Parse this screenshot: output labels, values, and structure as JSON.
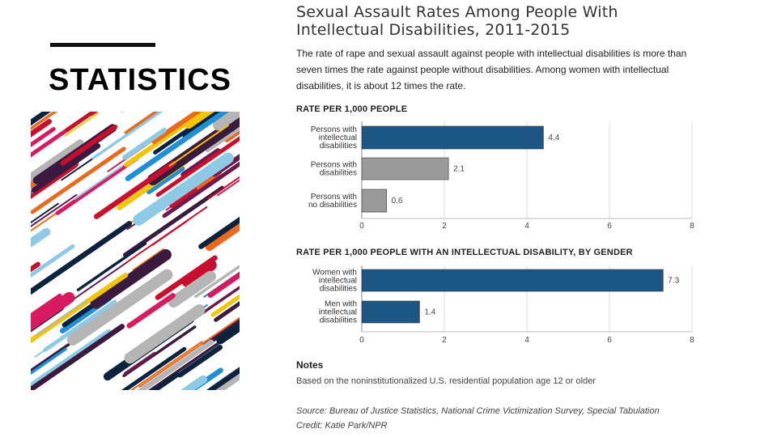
{
  "slide": {
    "heading": "STATISTICS"
  },
  "chart": {
    "title_line1": "Sexual Assault Rates Among People With",
    "title_line2": "Intellectual Disabilities, 2011-2015",
    "subtitle_line1": "The rate of rape and sexual assault against people with intellectual disabilities is more than",
    "subtitle_line2": "seven times the rate against people without disabilities. Among women with intellectual",
    "subtitle_line3": "disabilities, it is about 12 times the rate.",
    "notes_title": "Notes",
    "note": "Based on the noninstitutionalized U.S. residential population age 12 or older",
    "source": "Source: Bureau of Justice Statistics, National Crime Victimization Survey, Special Tabulation",
    "credit": "Credit: Katie Park/NPR"
  },
  "colors": {
    "highlight": "#1b5684",
    "neutral": "#9a9a9a",
    "grid": "#dddddd"
  },
  "chart_data": [
    {
      "type": "bar",
      "orientation": "horizontal",
      "title": "RATE PER 1,000 PEOPLE",
      "categories": [
        [
          "Persons with",
          "intellectual",
          "disabilities"
        ],
        [
          "Persons with",
          "disabilities"
        ],
        [
          "Persons with",
          "no disabilities"
        ]
      ],
      "values": [
        4.4,
        2.1,
        0.6
      ],
      "value_labels": [
        "4.4",
        "2.1",
        "0.6"
      ],
      "bar_colors": [
        "#1b5684",
        "#9a9a9a",
        "#9a9a9a"
      ],
      "xlim": [
        0,
        8
      ],
      "ticks": [
        0,
        2,
        4,
        6,
        8
      ],
      "grid": true
    },
    {
      "type": "bar",
      "orientation": "horizontal",
      "title": "RATE PER 1,000 PEOPLE WITH AN INTELLECTUAL DISABILITY, BY GENDER",
      "categories": [
        [
          "Women with",
          "intellectual",
          "disabilities"
        ],
        [
          "Men with",
          "intellectual",
          "disabilities"
        ]
      ],
      "values": [
        7.3,
        1.4
      ],
      "value_labels": [
        "7.3",
        "1.4"
      ],
      "bar_colors": [
        "#1b5684",
        "#1b5684"
      ],
      "xlim": [
        0,
        8
      ],
      "ticks": [
        0,
        2,
        4,
        6,
        8
      ],
      "grid": true
    }
  ]
}
